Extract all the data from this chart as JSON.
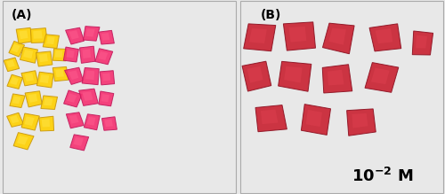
{
  "figsize": [
    5.0,
    2.19
  ],
  "dpi": 100,
  "panel_A_label": "(A)",
  "panel_B_label": "(B)",
  "bg_color": "#e8e8e8",
  "white_bg": "#f5f5f5",
  "label_fontsize": 10,
  "label_fontweight": "bold",
  "conc_fontsize": 13,
  "conc_fontweight": "bold",
  "yellow_fill": "#FFD000",
  "yellow_edge": "#C8960C",
  "yellow_light": "#FFE84D",
  "pink_fill": "#F53070",
  "pink_edge": "#C0185A",
  "pink_light": "#FF6090",
  "red_fill": "#C82030",
  "red_edge": "#8B1020",
  "red_light": "#E04050",
  "divider": 0.535,
  "border_color": "#aaaaaa",
  "yellow_pieces": [
    [
      0.06,
      0.75,
      0.05,
      0.065,
      -20
    ],
    [
      0.095,
      0.82,
      0.06,
      0.07,
      10
    ],
    [
      0.155,
      0.82,
      0.065,
      0.075,
      5
    ],
    [
      0.21,
      0.79,
      0.058,
      0.068,
      -8
    ],
    [
      0.04,
      0.67,
      0.052,
      0.06,
      15
    ],
    [
      0.115,
      0.72,
      0.062,
      0.072,
      -12
    ],
    [
      0.18,
      0.7,
      0.06,
      0.07,
      8
    ],
    [
      0.245,
      0.72,
      0.055,
      0.065,
      -5
    ],
    [
      0.055,
      0.58,
      0.05,
      0.06,
      -18
    ],
    [
      0.12,
      0.6,
      0.06,
      0.07,
      12
    ],
    [
      0.185,
      0.59,
      0.062,
      0.072,
      -10
    ],
    [
      0.25,
      0.62,
      0.058,
      0.068,
      6
    ],
    [
      0.065,
      0.48,
      0.052,
      0.062,
      -15
    ],
    [
      0.135,
      0.49,
      0.06,
      0.07,
      10
    ],
    [
      0.2,
      0.47,
      0.058,
      0.068,
      -8
    ],
    [
      0.055,
      0.38,
      0.05,
      0.06,
      20
    ],
    [
      0.12,
      0.37,
      0.062,
      0.072,
      -12
    ],
    [
      0.19,
      0.36,
      0.058,
      0.068,
      5
    ],
    [
      0.09,
      0.27,
      0.065,
      0.075,
      -18
    ]
  ],
  "pink_pieces_A": [
    [
      0.31,
      0.82,
      0.058,
      0.075,
      15
    ],
    [
      0.38,
      0.83,
      0.06,
      0.072,
      -8
    ],
    [
      0.445,
      0.81,
      0.055,
      0.068,
      10
    ],
    [
      0.295,
      0.72,
      0.056,
      0.07,
      -12
    ],
    [
      0.365,
      0.72,
      0.062,
      0.078,
      6
    ],
    [
      0.435,
      0.71,
      0.058,
      0.072,
      -15
    ],
    [
      0.31,
      0.61,
      0.06,
      0.074,
      18
    ],
    [
      0.38,
      0.61,
      0.064,
      0.078,
      -6
    ],
    [
      0.45,
      0.6,
      0.056,
      0.07,
      8
    ],
    [
      0.3,
      0.49,
      0.058,
      0.072,
      -20
    ],
    [
      0.37,
      0.5,
      0.062,
      0.076,
      12
    ],
    [
      0.445,
      0.49,
      0.055,
      0.068,
      -8
    ],
    [
      0.31,
      0.38,
      0.06,
      0.074,
      15
    ],
    [
      0.385,
      0.37,
      0.058,
      0.07,
      -10
    ],
    [
      0.46,
      0.36,
      0.056,
      0.068,
      6
    ],
    [
      0.33,
      0.265,
      0.062,
      0.072,
      -15
    ]
  ],
  "red_pieces_B": [
    [
      0.095,
      0.81,
      0.13,
      0.135,
      -8
    ],
    [
      0.29,
      0.82,
      0.14,
      0.14,
      5
    ],
    [
      0.49,
      0.81,
      0.13,
      0.138,
      -12
    ],
    [
      0.72,
      0.81,
      0.135,
      0.132,
      10
    ],
    [
      0.9,
      0.78,
      0.095,
      0.12,
      -6
    ],
    [
      0.08,
      0.61,
      0.125,
      0.13,
      12
    ],
    [
      0.27,
      0.61,
      0.14,
      0.14,
      -8
    ],
    [
      0.48,
      0.59,
      0.138,
      0.136,
      6
    ],
    [
      0.7,
      0.6,
      0.13,
      0.135,
      -15
    ],
    [
      0.15,
      0.39,
      0.13,
      0.13,
      8
    ],
    [
      0.37,
      0.38,
      0.128,
      0.132,
      -10
    ],
    [
      0.6,
      0.37,
      0.132,
      0.128,
      5
    ]
  ]
}
